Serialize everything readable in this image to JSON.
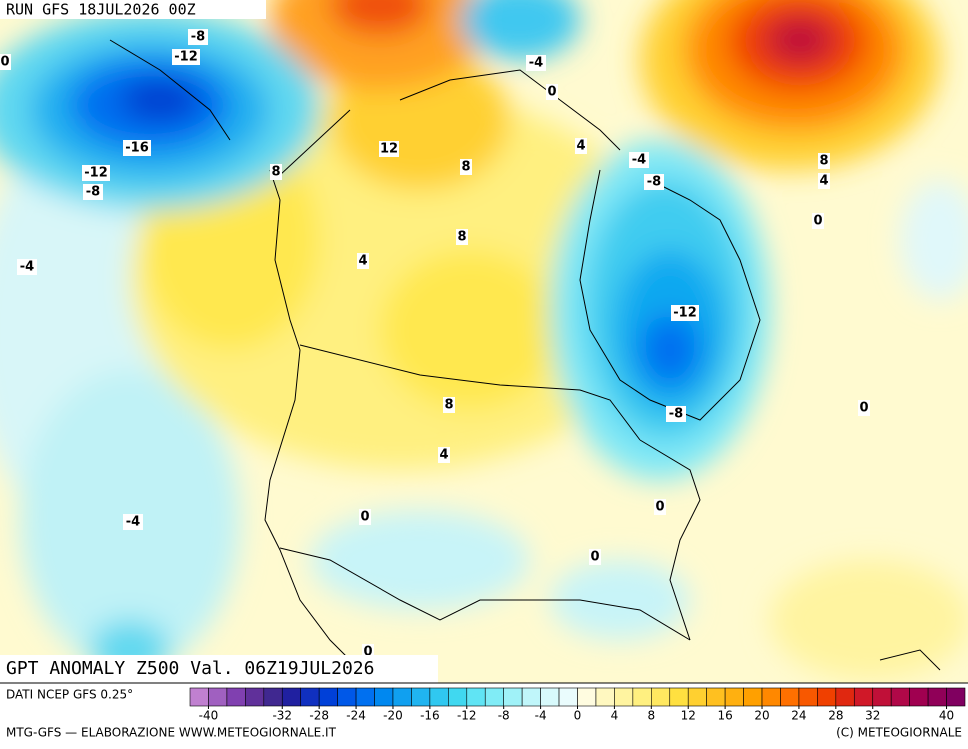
{
  "header": {
    "run": "RUN GFS 18JUL2026 00Z"
  },
  "map": {
    "title": "GPT ANOMALY Z500 Val. 06Z19JUL2026",
    "contour_labels": [
      0,
      -8,
      -12,
      -4,
      0,
      -16,
      12,
      4,
      -4,
      -12,
      8,
      8,
      -8,
      8,
      4,
      -8,
      0,
      8,
      -4,
      4,
      -12,
      0,
      8,
      -8,
      4,
      0,
      -4,
      0,
      0,
      0
    ]
  },
  "colorbar": {
    "range": [
      -42,
      42
    ],
    "ticks": [
      -40,
      -32,
      -28,
      -24,
      -20,
      -16,
      -12,
      -8,
      -4,
      0,
      4,
      8,
      12,
      16,
      20,
      24,
      28,
      32,
      40
    ],
    "colors": [
      "#c080d0",
      "#a060c0",
      "#8040b0",
      "#60309a",
      "#402890",
      "#2020a0",
      "#1030c0",
      "#0040d8",
      "#0058e8",
      "#0070f0",
      "#0088f0",
      "#10a0f0",
      "#20b4f0",
      "#30c8f0",
      "#40d8f0",
      "#60e4f4",
      "#80ecf6",
      "#a0f2f8",
      "#c0f6fa",
      "#d8fafc",
      "#eafcfd",
      "#fffce0",
      "#fff8c0",
      "#fff4a0",
      "#fff080",
      "#ffe860",
      "#ffe040",
      "#ffd030",
      "#ffc020",
      "#ffb010",
      "#ffa000",
      "#ff8800",
      "#ff7000",
      "#f85800",
      "#f04000",
      "#e02810",
      "#d01828",
      "#c01038",
      "#b00848",
      "#a00050",
      "#900058",
      "#800060"
    ]
  },
  "footer": {
    "source": "DATI NCEP GFS 0.25°",
    "credit": "MTG-GFS — ELABORAZIONE WWW.METEOGIORNALE.IT",
    "copyright": "(C) METEOGIORNALE"
  }
}
